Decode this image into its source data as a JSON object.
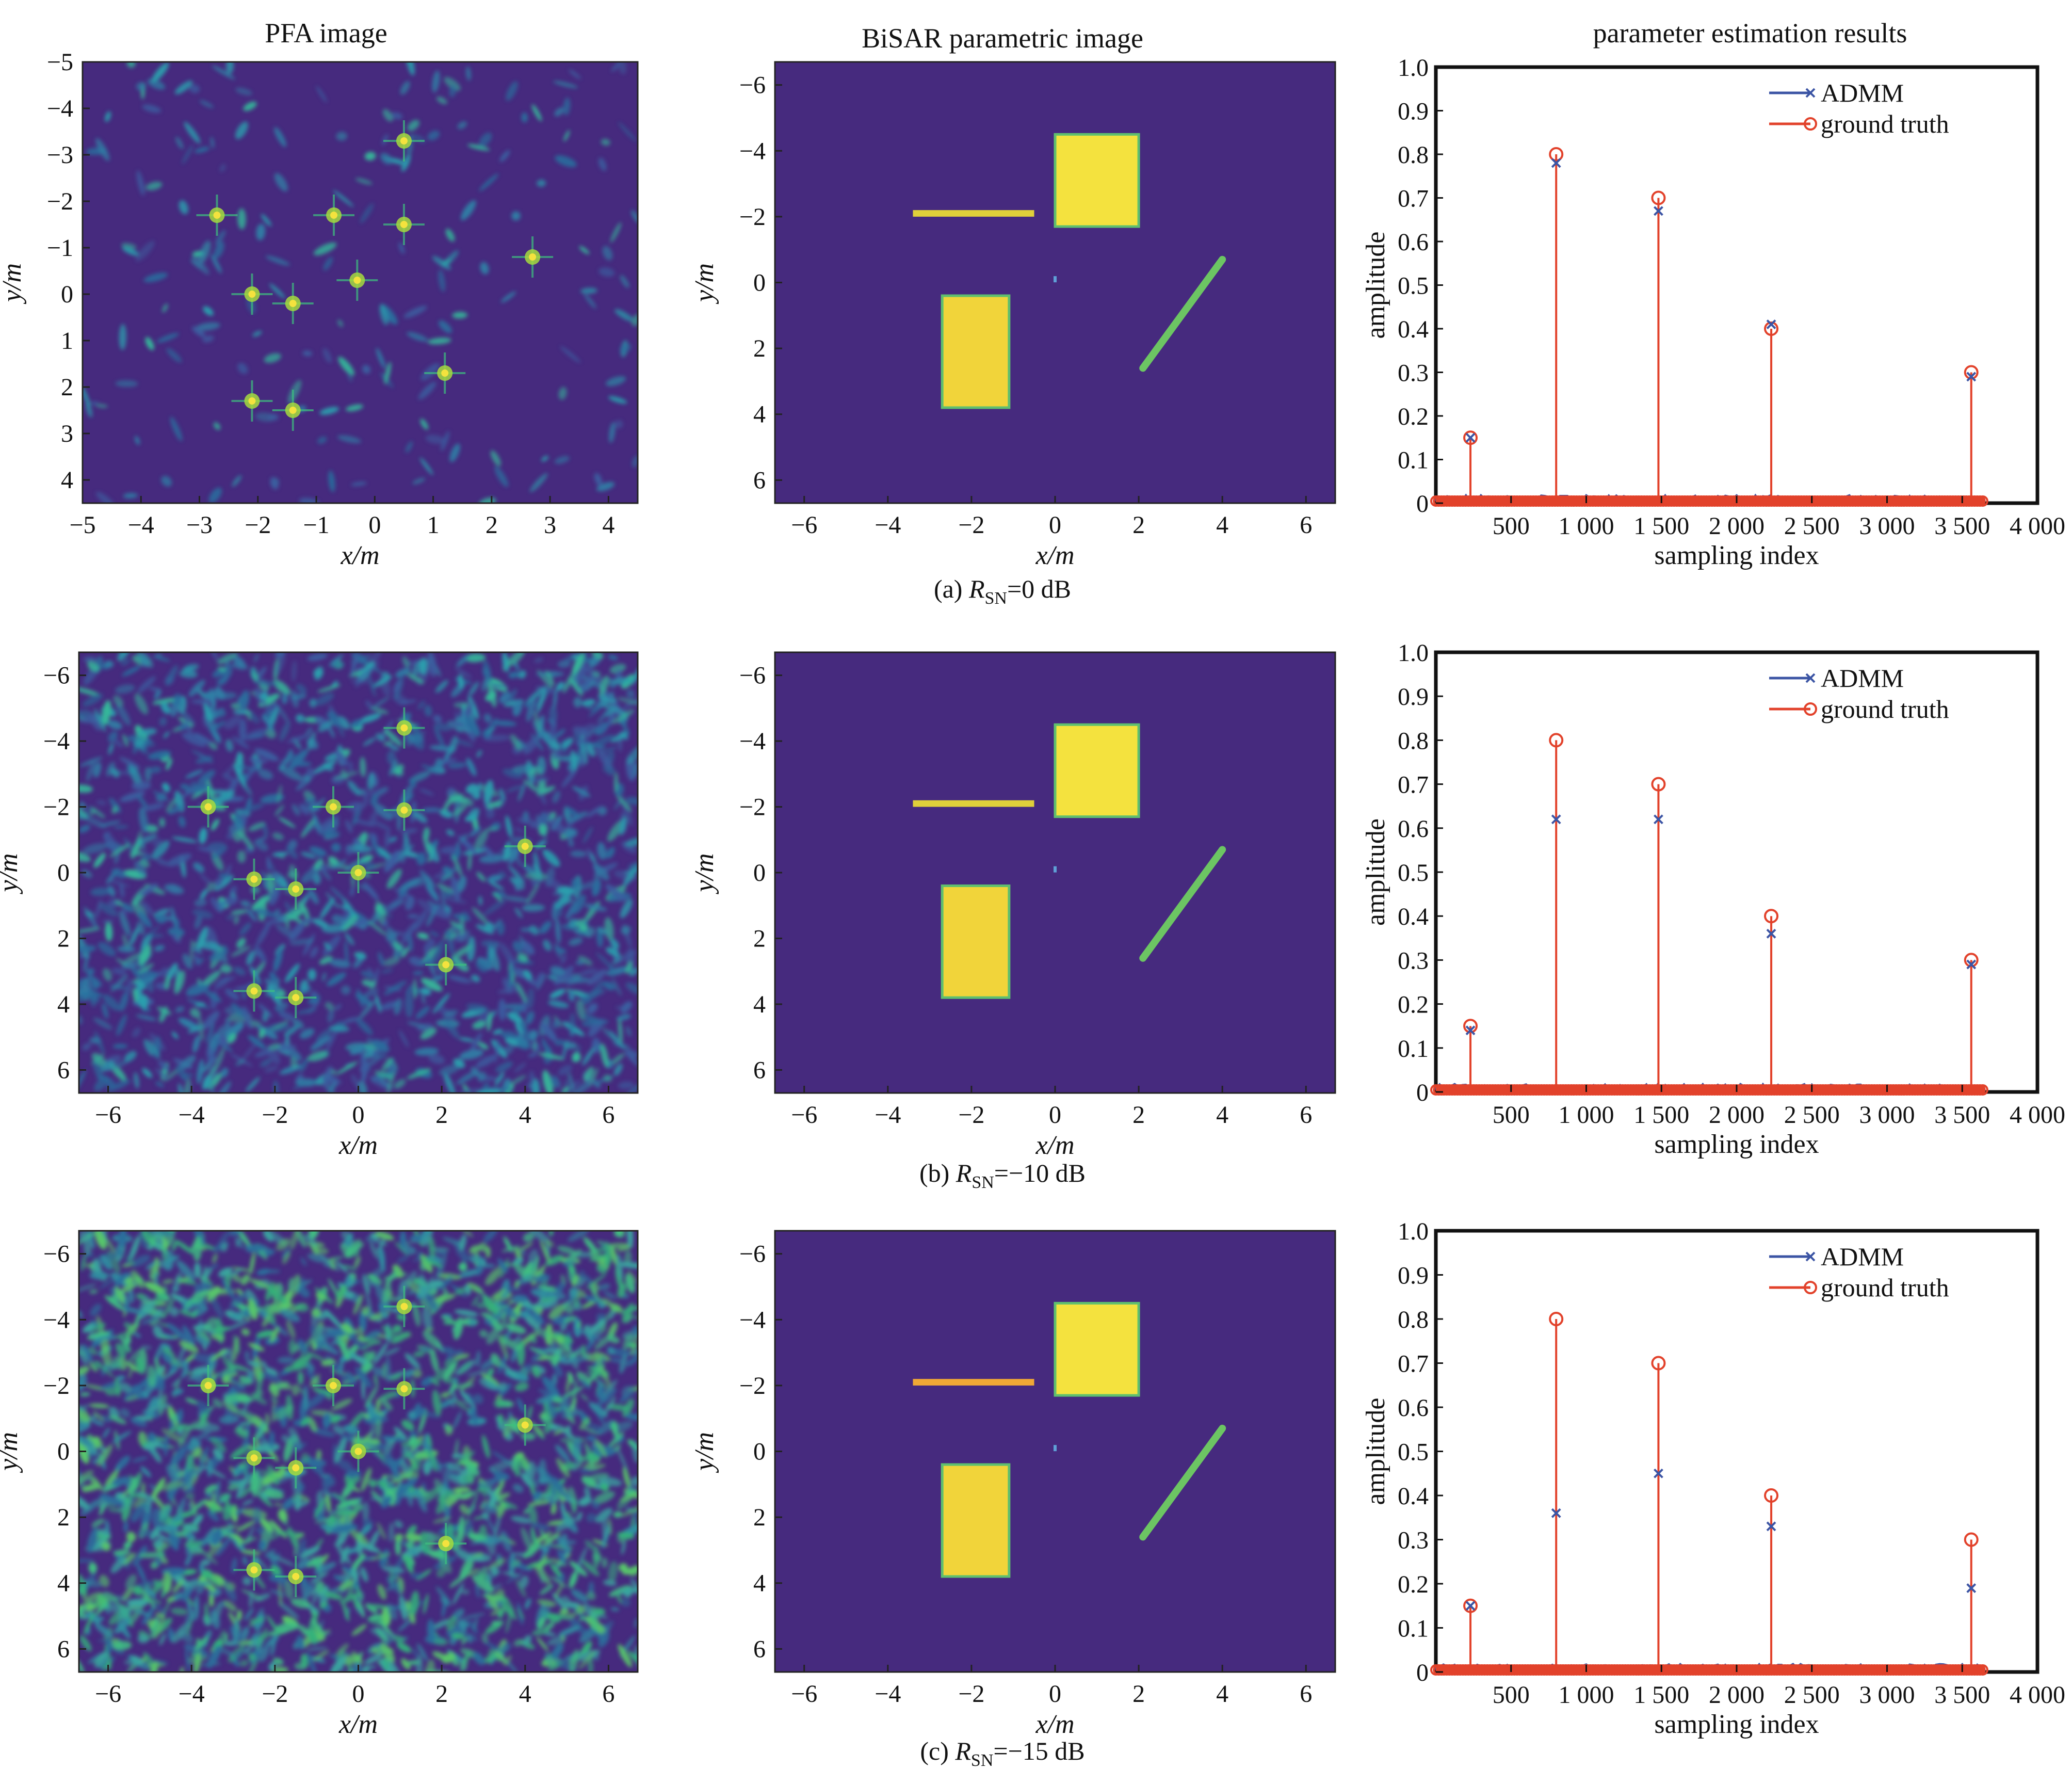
{
  "column_titles": {
    "pfa": "PFA image",
    "param": "BiSAR parametric image",
    "est": "parameter estimation results"
  },
  "labels": {
    "x_axis_map": "x/m",
    "y_axis_map": "y/m",
    "x_axis_est": "sampling index",
    "y_axis_est": "amplitude"
  },
  "captions": [
    {
      "prefix": "(a) ",
      "R": "R",
      "sub": "SN",
      "suffix": "=0 dB"
    },
    {
      "prefix": "(b) ",
      "R": "R",
      "sub": "SN",
      "suffix": "=−10 dB"
    },
    {
      "prefix": "(c) ",
      "R": "R",
      "sub": "SN",
      "suffix": "=−15 dB"
    }
  ],
  "colors": {
    "background_dark": "#462a7e",
    "noise_light": "#35b779",
    "target_yellow": "#f4e23e",
    "target_green": "#6cc563",
    "admm": "#3b54a4",
    "truth": "#e2422b"
  },
  "chart_data": [
    {
      "type": "heatmap",
      "panel": "a1",
      "title": "PFA image",
      "xlabel": "x/m",
      "ylabel": "y/m",
      "xlim": [
        -5,
        4.5
      ],
      "ylim": [
        4.5,
        -5
      ],
      "xticks": [
        "−5",
        "−4",
        "−3",
        "−2",
        "−1",
        "0",
        "1",
        "2",
        "3",
        "4"
      ],
      "yticks": [
        "−5",
        "−4",
        "−3",
        "−2",
        "−1",
        "0",
        "1",
        "2",
        "3",
        "4"
      ],
      "noise": 0.05,
      "point_targets": [
        [
          0.5,
          -3.3
        ],
        [
          -2.7,
          -1.7
        ],
        [
          -0.7,
          -1.7
        ],
        [
          0.5,
          -1.5
        ],
        [
          2.7,
          -0.8
        ],
        [
          -2.1,
          0.0
        ],
        [
          -1.4,
          0.2
        ],
        [
          -0.3,
          -0.3
        ],
        [
          1.2,
          1.7
        ],
        [
          -2.1,
          2.3
        ],
        [
          -1.4,
          2.5
        ]
      ]
    },
    {
      "type": "heatmap",
      "panel": "a2",
      "title": "BiSAR parametric image",
      "xlabel": "x/m",
      "ylabel": "y/m",
      "xlim": [
        -6.7,
        6.7
      ],
      "ylim": [
        6.7,
        -6.7
      ],
      "xticks": [
        "−6",
        "−4",
        "−2",
        "0",
        "2",
        "4",
        "6"
      ],
      "yticks": [
        "−6",
        "−4",
        "−2",
        "0",
        "2",
        "4",
        "6"
      ],
      "shapes": {
        "square": [
          0,
          -4.5,
          2,
          -1.7
        ],
        "rect": [
          -2.7,
          0.4,
          -1.1,
          3.8
        ],
        "bar": [
          -3.4,
          -2.2,
          -0.5,
          -2.0
        ],
        "line": [
          [
            2.1,
            2.6
          ],
          [
            4.0,
            -0.7
          ]
        ]
      }
    },
    {
      "type": "line",
      "panel": "a3",
      "title": "parameter estimation results",
      "xlabel": "sampling index",
      "ylabel": "amplitude",
      "xlim": [
        0,
        4000
      ],
      "ylim": [
        0,
        1.0
      ],
      "xticks": [
        "500",
        "1 000",
        "1 500",
        "2 000",
        "2 500",
        "3 000",
        "3 500",
        "4 000"
      ],
      "yticks": [
        "0",
        "0.1",
        "0.2",
        "0.3",
        "0.4",
        "0.5",
        "0.6",
        "0.7",
        "0.8",
        "0.9",
        "1.0"
      ],
      "legend": "top-right",
      "series": [
        {
          "name": "ADMM",
          "x": [
            230,
            800,
            1480,
            2230,
            3560
          ],
          "y": [
            0.15,
            0.78,
            0.67,
            0.41,
            0.29
          ]
        },
        {
          "name": "ground truth",
          "x": [
            230,
            800,
            1480,
            2230,
            3560
          ],
          "y": [
            0.15,
            0.8,
            0.7,
            0.4,
            0.3
          ]
        }
      ]
    },
    {
      "type": "heatmap",
      "panel": "b1",
      "xlabel": "x/m",
      "ylabel": "y/m",
      "xlim": [
        -6.7,
        6.7
      ],
      "ylim": [
        6.7,
        -6.7
      ],
      "xticks": [
        "−6",
        "−4",
        "−2",
        "0",
        "2",
        "4",
        "6"
      ],
      "yticks": [
        "−6",
        "−4",
        "−2",
        "0",
        "2",
        "4",
        "6"
      ],
      "noise": 0.55,
      "point_targets": [
        [
          1.1,
          -4.4
        ],
        [
          -3.6,
          -2.0
        ],
        [
          -0.6,
          -2.0
        ],
        [
          1.1,
          -1.9
        ],
        [
          4.0,
          -0.8
        ],
        [
          -2.5,
          0.2
        ],
        [
          -1.5,
          0.5
        ],
        [
          0.0,
          0.0
        ],
        [
          2.1,
          2.8
        ],
        [
          -2.5,
          3.6
        ],
        [
          -1.5,
          3.8
        ]
      ]
    },
    {
      "type": "heatmap",
      "panel": "b2",
      "xlabel": "x/m",
      "ylabel": "y/m",
      "xlim": [
        -6.7,
        6.7
      ],
      "ylim": [
        6.7,
        -6.7
      ],
      "xticks": [
        "−6",
        "−4",
        "−2",
        "0",
        "2",
        "4",
        "6"
      ],
      "yticks": [
        "−6",
        "−4",
        "−2",
        "0",
        "2",
        "4",
        "6"
      ],
      "shapes": {
        "square": [
          0,
          -4.5,
          2,
          -1.7
        ],
        "rect": [
          -2.7,
          0.4,
          -1.1,
          3.8
        ],
        "bar": [
          -3.4,
          -2.2,
          -0.5,
          -2.0
        ],
        "line": [
          [
            2.1,
            2.6
          ],
          [
            4.0,
            -0.7
          ]
        ]
      }
    },
    {
      "type": "line",
      "panel": "b3",
      "xlabel": "sampling index",
      "ylabel": "amplitude",
      "xlim": [
        0,
        4000
      ],
      "ylim": [
        0,
        1.0
      ],
      "xticks": [
        "500",
        "1 000",
        "1 500",
        "2 000",
        "2 500",
        "3 000",
        "3 500",
        "4 000"
      ],
      "yticks": [
        "0",
        "0.1",
        "0.2",
        "0.3",
        "0.4",
        "0.5",
        "0.6",
        "0.7",
        "0.8",
        "0.9",
        "1.0"
      ],
      "legend": "top-right",
      "series": [
        {
          "name": "ADMM",
          "x": [
            230,
            800,
            1480,
            2230,
            3560
          ],
          "y": [
            0.14,
            0.62,
            0.62,
            0.36,
            0.29
          ]
        },
        {
          "name": "ground truth",
          "x": [
            230,
            800,
            1480,
            2230,
            3560
          ],
          "y": [
            0.15,
            0.8,
            0.7,
            0.4,
            0.3
          ]
        }
      ]
    },
    {
      "type": "heatmap",
      "panel": "c1",
      "xlabel": "x/m",
      "ylabel": "y/m",
      "xlim": [
        -6.7,
        6.7
      ],
      "ylim": [
        6.7,
        -6.7
      ],
      "xticks": [
        "−6",
        "−4",
        "−2",
        "0",
        "2",
        "4",
        "6"
      ],
      "yticks": [
        "−6",
        "−4",
        "−2",
        "0",
        "2",
        "4",
        "6"
      ],
      "noise": 0.8,
      "point_targets": [
        [
          1.1,
          -4.4
        ],
        [
          -3.6,
          -2.0
        ],
        [
          -0.6,
          -2.0
        ],
        [
          1.1,
          -1.9
        ],
        [
          4.0,
          -0.8
        ],
        [
          -2.5,
          0.2
        ],
        [
          -1.5,
          0.5
        ],
        [
          0.0,
          0.0
        ],
        [
          2.1,
          2.8
        ],
        [
          -2.5,
          3.6
        ],
        [
          -1.5,
          3.8
        ]
      ]
    },
    {
      "type": "heatmap",
      "panel": "c2",
      "xlabel": "x/m",
      "ylabel": "y/m",
      "xlim": [
        -6.7,
        6.7
      ],
      "ylim": [
        6.7,
        -6.7
      ],
      "xticks": [
        "−6",
        "−4",
        "−2",
        "0",
        "2",
        "4",
        "6"
      ],
      "yticks": [
        "−6",
        "−4",
        "−2",
        "0",
        "2",
        "4",
        "6"
      ],
      "shapes": {
        "square": [
          0,
          -4.5,
          2,
          -1.7
        ],
        "rect": [
          -2.7,
          0.4,
          -1.1,
          3.8
        ],
        "bar": [
          -3.4,
          -2.2,
          -0.5,
          -2.0
        ],
        "line": [
          [
            2.1,
            2.6
          ],
          [
            4.0,
            -0.7
          ]
        ]
      }
    },
    {
      "type": "line",
      "panel": "c3",
      "xlabel": "sampling index",
      "ylabel": "amplitude",
      "xlim": [
        0,
        4000
      ],
      "ylim": [
        0,
        1.0
      ],
      "xticks": [
        "500",
        "1 000",
        "1 500",
        "2 000",
        "2 500",
        "3 000",
        "3 500",
        "4 000"
      ],
      "yticks": [
        "0",
        "0.1",
        "0.2",
        "0.3",
        "0.4",
        "0.5",
        "0.6",
        "0.7",
        "0.8",
        "0.9",
        "1.0"
      ],
      "legend": "top-right",
      "series": [
        {
          "name": "ADMM",
          "x": [
            230,
            800,
            1480,
            2230,
            3560
          ],
          "y": [
            0.15,
            0.36,
            0.45,
            0.33,
            0.19
          ]
        },
        {
          "name": "ground truth",
          "x": [
            230,
            800,
            1480,
            2230,
            3560
          ],
          "y": [
            0.15,
            0.8,
            0.7,
            0.4,
            0.3
          ]
        }
      ]
    }
  ]
}
